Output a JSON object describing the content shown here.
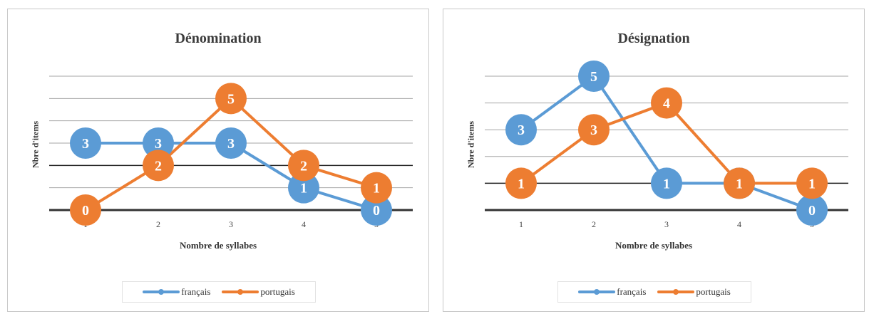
{
  "chart_data": [
    {
      "type": "line",
      "title": "Dénomination",
      "xlabel": "Nombre de syllabes",
      "ylabel": "Nbre d'items",
      "categories": [
        "1",
        "2",
        "3",
        "4",
        "5"
      ],
      "ylim": [
        0,
        6
      ],
      "grid": true,
      "legend_position": "bottom",
      "series": [
        {
          "name": "français",
          "values": [
            3,
            3,
            3,
            1,
            0
          ],
          "color": "#5b9bd5"
        },
        {
          "name": "portugais",
          "values": [
            0,
            2,
            5,
            2,
            1
          ],
          "color": "#ed7d31"
        }
      ]
    },
    {
      "type": "line",
      "title": "Désignation",
      "xlabel": "Nombre de syllabes",
      "ylabel": "Nbre d'items",
      "categories": [
        "1",
        "2",
        "3",
        "4",
        "5"
      ],
      "ylim": [
        0,
        5
      ],
      "grid": true,
      "legend_position": "bottom",
      "series": [
        {
          "name": "français",
          "values": [
            3,
            5,
            1,
            1,
            0
          ],
          "color": "#5b9bd5"
        },
        {
          "name": "portugais",
          "values": [
            1,
            3,
            4,
            1,
            1
          ],
          "color": "#ed7d31"
        }
      ]
    }
  ]
}
